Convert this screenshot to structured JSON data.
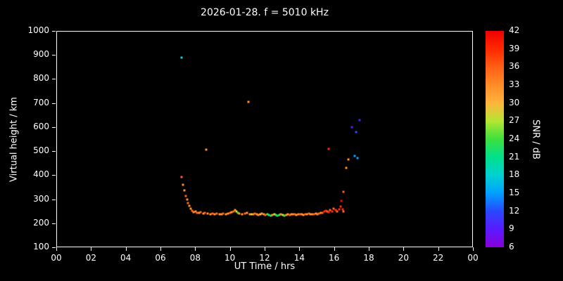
{
  "title": "2026-01-28. f = 5010 kHz",
  "colors": {
    "background": "#000000",
    "foreground": "#ffffff"
  },
  "chart_data": {
    "type": "scatter",
    "title": "2026-01-28. f = 5010 kHz",
    "xlabel": "UT Time / hrs",
    "ylabel": "Virtual height / km",
    "xlim": [
      0,
      24
    ],
    "ylim": [
      100,
      1000
    ],
    "x_ticks": [
      "00",
      "02",
      "04",
      "06",
      "08",
      "10",
      "12",
      "14",
      "16",
      "18",
      "20",
      "22",
      "00"
    ],
    "x_tick_values": [
      0,
      2,
      4,
      6,
      8,
      10,
      12,
      14,
      16,
      18,
      20,
      22,
      24
    ],
    "y_ticks": [
      "100",
      "200",
      "300",
      "400",
      "500",
      "600",
      "700",
      "800",
      "900",
      "1000"
    ],
    "y_tick_values": [
      100,
      200,
      300,
      400,
      500,
      600,
      700,
      800,
      900,
      1000
    ],
    "grid": false,
    "colorbar": {
      "label": "SNR / dB",
      "min": 6,
      "max": 42,
      "ticks": [
        6,
        9,
        12,
        15,
        18,
        21,
        24,
        27,
        30,
        33,
        36,
        39,
        42
      ],
      "stops": [
        {
          "value": 6,
          "color": "#8800d8"
        },
        {
          "value": 9,
          "color": "#5a1aff"
        },
        {
          "value": 12,
          "color": "#2948ff"
        },
        {
          "value": 15,
          "color": "#00a0ff"
        },
        {
          "value": 18,
          "color": "#00d2d2"
        },
        {
          "value": 21,
          "color": "#00e08c"
        },
        {
          "value": 24,
          "color": "#3ce03c"
        },
        {
          "value": 27,
          "color": "#b4e632"
        },
        {
          "value": 30,
          "color": "#ffb43c"
        },
        {
          "value": 33,
          "color": "#ff8c28"
        },
        {
          "value": 36,
          "color": "#ff5f14"
        },
        {
          "value": 39,
          "color": "#ff2800"
        },
        {
          "value": 42,
          "color": "#f00000"
        }
      ]
    },
    "points_format": [
      "hour_ut",
      "virtual_height_km",
      "snr_db"
    ],
    "points": [
      [
        7.18,
        890,
        18
      ],
      [
        8.62,
        505,
        33
      ],
      [
        11.05,
        705,
        33
      ],
      [
        15.72,
        510,
        39
      ],
      [
        16.55,
        330,
        36
      ],
      [
        16.7,
        430,
        33
      ],
      [
        16.85,
        465,
        33
      ],
      [
        17.05,
        600,
        9
      ],
      [
        17.2,
        480,
        15
      ],
      [
        17.35,
        470,
        15
      ],
      [
        17.3,
        580,
        12
      ],
      [
        17.5,
        630,
        9
      ],
      [
        7.22,
        390,
        36
      ],
      [
        7.3,
        360,
        33
      ],
      [
        7.38,
        335,
        33
      ],
      [
        7.45,
        312,
        36
      ],
      [
        7.52,
        296,
        33
      ],
      [
        7.58,
        283,
        36
      ],
      [
        7.65,
        270,
        33
      ],
      [
        7.72,
        258,
        33
      ],
      [
        7.8,
        250,
        36
      ],
      [
        7.9,
        244,
        33
      ],
      [
        8.0,
        246,
        33
      ],
      [
        8.1,
        242,
        36
      ],
      [
        8.2,
        240,
        33
      ],
      [
        8.3,
        243,
        36
      ],
      [
        8.45,
        238,
        33
      ],
      [
        8.55,
        240,
        36
      ],
      [
        8.7,
        238,
        33
      ],
      [
        8.85,
        236,
        33
      ],
      [
        9.0,
        238,
        36
      ],
      [
        9.1,
        235,
        33
      ],
      [
        9.25,
        237,
        36
      ],
      [
        9.4,
        234,
        33
      ],
      [
        9.5,
        236,
        33
      ],
      [
        9.6,
        238,
        36
      ],
      [
        9.75,
        235,
        33
      ],
      [
        9.9,
        237,
        33
      ],
      [
        10.0,
        240,
        36
      ],
      [
        10.1,
        243,
        33
      ],
      [
        10.2,
        248,
        36
      ],
      [
        10.3,
        252,
        33
      ],
      [
        10.38,
        246,
        27
      ],
      [
        10.45,
        240,
        24
      ],
      [
        10.55,
        238,
        33
      ],
      [
        10.7,
        236,
        33
      ],
      [
        10.85,
        238,
        36
      ],
      [
        11.0,
        240,
        33
      ],
      [
        11.15,
        236,
        33
      ],
      [
        11.25,
        234,
        27
      ],
      [
        11.35,
        236,
        33
      ],
      [
        11.45,
        238,
        36
      ],
      [
        11.55,
        235,
        33
      ],
      [
        11.65,
        233,
        33
      ],
      [
        11.75,
        235,
        30
      ],
      [
        11.85,
        237,
        33
      ],
      [
        11.95,
        234,
        33
      ],
      [
        12.05,
        232,
        36
      ],
      [
        12.15,
        234,
        24
      ],
      [
        12.25,
        232,
        21
      ],
      [
        12.35,
        230,
        24
      ],
      [
        12.45,
        232,
        33
      ],
      [
        12.55,
        234,
        27
      ],
      [
        12.65,
        232,
        24
      ],
      [
        12.75,
        230,
        21
      ],
      [
        12.85,
        232,
        24
      ],
      [
        12.95,
        234,
        33
      ],
      [
        13.05,
        232,
        27
      ],
      [
        13.15,
        230,
        24
      ],
      [
        13.25,
        232,
        33
      ],
      [
        13.35,
        234,
        33
      ],
      [
        13.45,
        232,
        36
      ],
      [
        13.55,
        234,
        33
      ],
      [
        13.65,
        236,
        33
      ],
      [
        13.75,
        234,
        36
      ],
      [
        13.85,
        232,
        33
      ],
      [
        13.95,
        234,
        33
      ],
      [
        14.05,
        236,
        36
      ],
      [
        14.15,
        234,
        33
      ],
      [
        14.25,
        232,
        33
      ],
      [
        14.35,
        234,
        36
      ],
      [
        14.45,
        236,
        33
      ],
      [
        14.55,
        238,
        36
      ],
      [
        14.65,
        236,
        33
      ],
      [
        14.75,
        234,
        33
      ],
      [
        14.85,
        236,
        36
      ],
      [
        14.95,
        238,
        33
      ],
      [
        15.05,
        236,
        33
      ],
      [
        15.15,
        238,
        36
      ],
      [
        15.25,
        240,
        33
      ],
      [
        15.35,
        242,
        36
      ],
      [
        15.45,
        246,
        39
      ],
      [
        15.55,
        250,
        39
      ],
      [
        15.62,
        246,
        36
      ],
      [
        15.7,
        244,
        39
      ],
      [
        15.8,
        252,
        36
      ],
      [
        15.9,
        248,
        39
      ],
      [
        16.0,
        258,
        36
      ],
      [
        16.1,
        252,
        39
      ],
      [
        16.2,
        248,
        36
      ],
      [
        16.3,
        255,
        39
      ],
      [
        16.4,
        268,
        39
      ],
      [
        16.45,
        290,
        42
      ],
      [
        16.5,
        255,
        39
      ],
      [
        16.55,
        248,
        36
      ]
    ]
  }
}
